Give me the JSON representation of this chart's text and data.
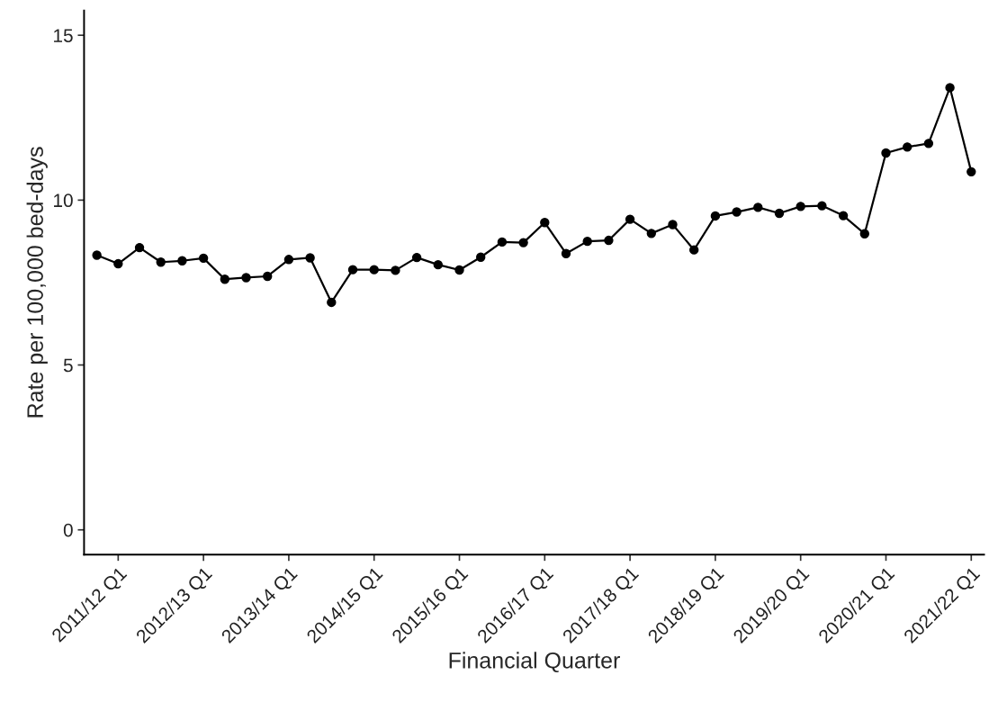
{
  "chart_data": {
    "type": "line",
    "xlabel": "Financial Quarter",
    "ylabel": "Rate per 100,000 bed-days",
    "categories": [
      null,
      "2011/12 Q1",
      null,
      null,
      null,
      "2012/13 Q1",
      null,
      null,
      null,
      "2013/14 Q1",
      null,
      null,
      null,
      "2014/15 Q1",
      null,
      null,
      null,
      "2015/16 Q1",
      null,
      null,
      null,
      "2016/17 Q1",
      null,
      null,
      null,
      "2017/18 Q1",
      null,
      null,
      null,
      "2018/19 Q1",
      null,
      null,
      null,
      "2019/20 Q1",
      null,
      null,
      null,
      "2020/21 Q1",
      null,
      null,
      null,
      "2021/22 Q1"
    ],
    "series": [
      {
        "color": "#000000",
        "values": [
          8.33,
          8.07,
          8.56,
          8.12,
          8.16,
          8.24,
          7.6,
          7.65,
          7.69,
          8.2,
          8.25,
          6.9,
          7.89,
          7.89,
          7.87,
          8.26,
          8.04,
          7.88,
          8.27,
          8.73,
          8.71,
          9.32,
          8.38,
          8.75,
          8.78,
          9.42,
          8.99,
          9.26,
          8.49,
          9.52,
          9.64,
          9.78,
          9.6,
          9.81,
          9.83,
          9.53,
          8.98,
          11.43,
          11.61,
          11.72,
          13.41,
          10.86
        ]
      }
    ],
    "ylim": [
      -0.75,
      15.75
    ],
    "yticks": [
      0,
      5,
      10,
      15
    ],
    "grid": false,
    "legend": false,
    "marker": "circle",
    "line_style": "solid"
  }
}
